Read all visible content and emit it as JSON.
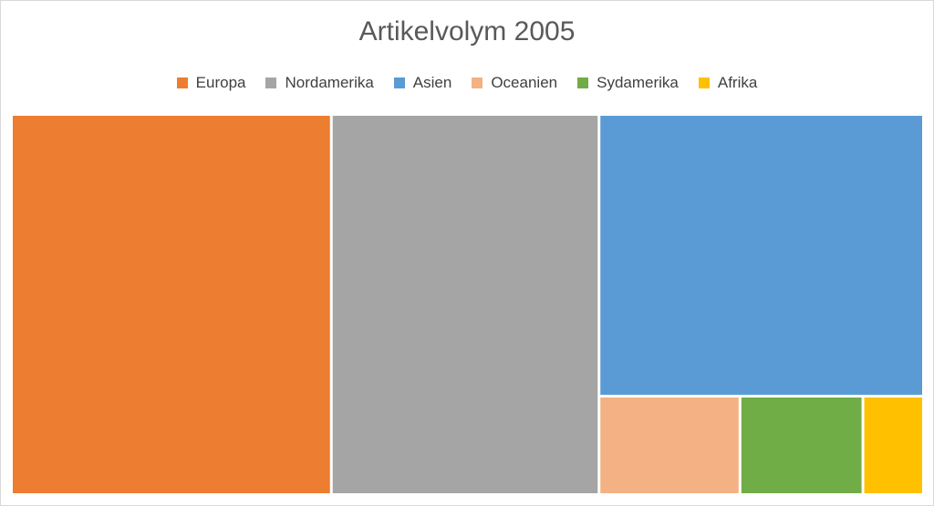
{
  "chart_data": {
    "type": "treemap",
    "title": "Artikelvolym 2005",
    "legend_position": "top",
    "series": [
      {
        "name": "Europa",
        "value": 34.9,
        "color": "#ED7D31"
      },
      {
        "name": "Nordamerika",
        "value": 29.2,
        "color": "#A5A5A5"
      },
      {
        "name": "Asien",
        "value": 26.2,
        "color": "#5B9BD5"
      },
      {
        "name": "Oceanien",
        "value": 3.9,
        "color": "#F4B183"
      },
      {
        "name": "Sydamerika",
        "value": 3.4,
        "color": "#70AD47"
      },
      {
        "name": "Afrika",
        "value": 1.6,
        "color": "#FFC000"
      }
    ],
    "data_labels": false
  }
}
